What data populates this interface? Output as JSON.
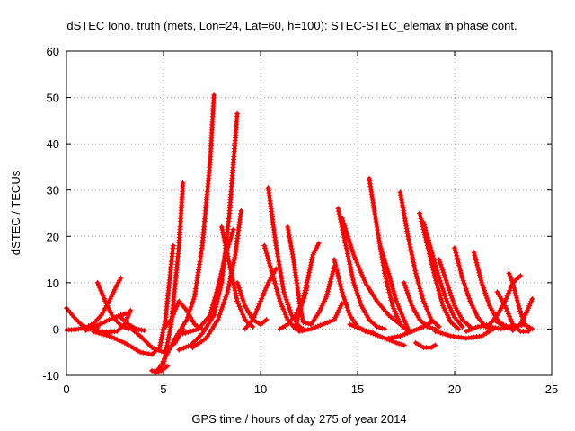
{
  "chart_data": {
    "type": "scatter",
    "title": "dSTEC Iono. truth (mets, Lon=24, Lat=60, h=100): STEC-STEC_elemax in phase cont.",
    "xlabel": "GPS time / hours of day 275 of year 2014",
    "ylabel": "dSTEC  / TECUs",
    "xlim": [
      0,
      25
    ],
    "ylim": [
      -10,
      60
    ],
    "x_ticks": [
      "0",
      "5",
      "10",
      "15",
      "20",
      "25"
    ],
    "y_ticks": [
      "-10",
      "0",
      "10",
      "20",
      "30",
      "40",
      "50",
      "60"
    ],
    "grid": true,
    "marker": "+",
    "series_color": "#ff0000",
    "arcs": [
      {
        "x": [
          0.0,
          0.4,
          0.8,
          1.2,
          1.6
        ],
        "y": [
          4.5,
          2.5,
          0.8,
          0.0,
          0.3
        ]
      },
      {
        "x": [
          0.0,
          0.5,
          1.0,
          1.4,
          1.8,
          2.2,
          2.6,
          2.8
        ],
        "y": [
          -0.2,
          -0.1,
          0.3,
          1.2,
          3.0,
          6.0,
          9.5,
          11.0
        ]
      },
      {
        "x": [
          1.0,
          1.6,
          2.2,
          2.8,
          3.2
        ],
        "y": [
          -0.3,
          0.8,
          2.0,
          3.0,
          3.5
        ]
      },
      {
        "x": [
          1.6,
          2.0,
          2.4,
          2.8,
          3.2
        ],
        "y": [
          10.0,
          6.0,
          2.5,
          0.8,
          0.0
        ]
      },
      {
        "x": [
          1.5,
          2.1,
          2.6,
          3.0,
          3.3
        ],
        "y": [
          -0.5,
          -0.7,
          -0.5,
          1.0,
          4.0
        ]
      },
      {
        "x": [
          1.4,
          2.2,
          3.0,
          3.8,
          4.4,
          4.8,
          5.1,
          5.3,
          5.5
        ],
        "y": [
          -0.6,
          -1.5,
          -3.0,
          -5.0,
          -5.5,
          -4.0,
          2.0,
          10.0,
          18.0
        ]
      },
      {
        "x": [
          4.4,
          4.6,
          4.9,
          5.2
        ],
        "y": [
          -9.0,
          -9.3,
          -9.0,
          -8.0
        ]
      },
      {
        "x": [
          4.6,
          5.0,
          5.4,
          5.8,
          6.0
        ],
        "y": [
          -9.2,
          -7.5,
          1.0,
          18.0,
          31.5
        ]
      },
      {
        "x": [
          3.2,
          3.8,
          4.4,
          5.0,
          5.6,
          6.0
        ],
        "y": [
          0.5,
          -1.5,
          -4.0,
          -5.0,
          -3.0,
          0.0
        ]
      },
      {
        "x": [
          5.0,
          5.4,
          5.8,
          6.2,
          6.6,
          7.0
        ],
        "y": [
          0.0,
          2.0,
          6.0,
          4.0,
          1.0,
          0.0
        ]
      },
      {
        "x": [
          4.8,
          5.6,
          6.2,
          6.6,
          7.0,
          7.4,
          7.6
        ],
        "y": [
          -8.5,
          -2.0,
          2.0,
          7.0,
          18.0,
          36.0,
          50.5
        ]
      },
      {
        "x": [
          5.8,
          6.4,
          7.0,
          7.6,
          8.0,
          8.4,
          8.8
        ],
        "y": [
          -4.5,
          -3.5,
          -1.0,
          3.0,
          10.0,
          25.0,
          46.5
        ]
      },
      {
        "x": [
          6.0,
          6.8,
          7.4,
          7.8,
          8.2,
          8.6
        ],
        "y": [
          -1.0,
          0.0,
          3.0,
          9.0,
          16.0,
          21.5
        ]
      },
      {
        "x": [
          6.5,
          7.2,
          7.8,
          8.3,
          8.7,
          9.0
        ],
        "y": [
          -4.0,
          -2.0,
          2.0,
          8.0,
          16.0,
          25.5
        ]
      },
      {
        "x": [
          8.0,
          8.4,
          8.8,
          9.2,
          9.6
        ],
        "y": [
          22.0,
          14.0,
          6.0,
          2.0,
          0.5
        ]
      },
      {
        "x": [
          8.8,
          9.2,
          9.6,
          10.0,
          10.3
        ],
        "y": [
          10.0,
          5.0,
          2.0,
          1.0,
          2.0
        ]
      },
      {
        "x": [
          9.2,
          9.6,
          10.0,
          10.4,
          10.8
        ],
        "y": [
          0.0,
          2.0,
          6.0,
          10.0,
          13.0
        ]
      },
      {
        "x": [
          10.4,
          10.8,
          11.2,
          11.6,
          12.0,
          12.2
        ],
        "y": [
          30.5,
          18.0,
          8.0,
          3.0,
          0.5,
          0.0
        ]
      },
      {
        "x": [
          10.2,
          10.6,
          11.0,
          11.4,
          11.8,
          12.2
        ],
        "y": [
          18.0,
          12.0,
          6.0,
          2.0,
          0.0,
          -0.2
        ]
      },
      {
        "x": [
          11.0,
          11.4,
          11.8,
          12.2,
          12.4
        ],
        "y": [
          0.0,
          1.0,
          3.0,
          6.0,
          9.0
        ]
      },
      {
        "x": [
          11.4,
          11.7,
          12.0,
          12.2
        ],
        "y": [
          22.0,
          15.0,
          6.0,
          1.5
        ]
      },
      {
        "x": [
          11.8,
          12.1,
          12.4,
          12.7,
          13.0
        ],
        "y": [
          0.5,
          5.0,
          10.0,
          16.0,
          18.5
        ]
      },
      {
        "x": [
          12.2,
          12.6,
          13.0,
          13.4,
          13.8
        ],
        "y": [
          1.5,
          1.0,
          3.5,
          7.0,
          13.5
        ]
      },
      {
        "x": [
          12.0,
          12.6,
          13.2,
          13.8,
          14.2
        ],
        "y": [
          -0.5,
          0.0,
          1.0,
          2.0,
          5.5
        ]
      },
      {
        "x": [
          14.0,
          14.4,
          14.8,
          15.2,
          15.6,
          16.0,
          16.4
        ],
        "y": [
          26.0,
          18.0,
          10.0,
          5.0,
          2.0,
          0.5,
          0.0
        ]
      },
      {
        "x": [
          13.8,
          14.2,
          14.6,
          15.0,
          15.4,
          15.8
        ],
        "y": [
          15.0,
          8.0,
          3.0,
          0.5,
          -0.5,
          -0.8
        ]
      },
      {
        "x": [
          14.2,
          14.8,
          15.4,
          16.0,
          16.6,
          17.2
        ],
        "y": [
          24.0,
          16.0,
          10.0,
          6.0,
          3.0,
          1.0
        ]
      },
      {
        "x": [
          15.6,
          16.0,
          16.4,
          16.8,
          17.2,
          17.6
        ],
        "y": [
          32.5,
          22.0,
          12.0,
          5.0,
          1.0,
          -0.5
        ]
      },
      {
        "x": [
          14.6,
          15.2,
          15.8,
          16.4,
          17.0,
          17.4
        ],
        "y": [
          1.0,
          0.0,
          -1.0,
          -2.0,
          -3.0,
          -3.5
        ]
      },
      {
        "x": [
          16.2,
          16.6,
          17.0,
          17.4,
          17.6
        ],
        "y": [
          17.5,
          12.0,
          6.0,
          2.0,
          0.0
        ]
      },
      {
        "x": [
          17.2,
          17.6,
          18.0,
          18.4,
          18.8,
          19.2
        ],
        "y": [
          29.5,
          20.0,
          12.0,
          6.0,
          2.0,
          0.5
        ]
      },
      {
        "x": [
          17.4,
          17.8,
          18.2,
          18.6,
          19.0
        ],
        "y": [
          10.0,
          5.0,
          2.0,
          0.5,
          0.0
        ]
      },
      {
        "x": [
          18.2,
          18.6,
          19.0,
          19.4,
          19.8,
          20.2
        ],
        "y": [
          25.0,
          18.0,
          11.0,
          5.0,
          1.5,
          0.0
        ]
      },
      {
        "x": [
          18.4,
          18.8,
          19.2,
          19.6,
          20.0,
          20.4
        ],
        "y": [
          23.0,
          17.0,
          11.0,
          6.0,
          2.5,
          0.5
        ]
      },
      {
        "x": [
          16.6,
          17.2,
          17.8,
          18.4,
          18.8
        ],
        "y": [
          -2.0,
          -1.5,
          -0.5,
          0.5,
          1.5
        ]
      },
      {
        "x": [
          18.0,
          18.4,
          18.8,
          19.0
        ],
        "y": [
          -3.0,
          -4.0,
          -4.0,
          -3.5
        ]
      },
      {
        "x": [
          19.2,
          19.6,
          20.0,
          20.4,
          20.8
        ],
        "y": [
          15.0,
          10.0,
          5.0,
          2.0,
          0.5
        ]
      },
      {
        "x": [
          20.0,
          20.4,
          20.8,
          21.2,
          21.6,
          22.0
        ],
        "y": [
          17.5,
          11.0,
          6.0,
          2.5,
          0.5,
          0.0
        ]
      },
      {
        "x": [
          19.0,
          19.8,
          20.6,
          21.4,
          22.0
        ],
        "y": [
          -0.5,
          -1.5,
          -2.0,
          -1.5,
          0.0
        ]
      },
      {
        "x": [
          21.0,
          21.4,
          21.8,
          22.2,
          22.6,
          23.0
        ],
        "y": [
          16.5,
          10.0,
          5.0,
          2.0,
          0.5,
          0.0
        ]
      },
      {
        "x": [
          20.6,
          21.2,
          21.8,
          22.2,
          22.6,
          23.0,
          23.4
        ],
        "y": [
          -0.5,
          0.5,
          1.0,
          3.0,
          6.0,
          10.0,
          11.5
        ]
      },
      {
        "x": [
          22.2,
          22.6,
          23.0,
          23.4,
          23.8
        ],
        "y": [
          8.0,
          5.0,
          1.0,
          -0.5,
          -0.5
        ]
      },
      {
        "x": [
          21.8,
          22.4,
          23.0,
          23.6,
          24.0
        ],
        "y": [
          0.5,
          0.0,
          0.5,
          1.0,
          0.0
        ]
      },
      {
        "x": [
          22.8,
          23.0,
          23.3,
          23.6,
          23.9
        ],
        "y": [
          12.0,
          10.0,
          5.0,
          1.0,
          0.0
        ]
      },
      {
        "x": [
          23.0,
          23.4,
          23.7,
          24.0
        ],
        "y": [
          -0.3,
          1.0,
          3.5,
          6.5
        ]
      },
      {
        "x": [
          2.8,
          3.2,
          3.6,
          4.0
        ],
        "y": [
          2.5,
          1.0,
          0.0,
          -0.3
        ]
      },
      {
        "x": [
          22.0,
          22.4,
          22.8,
          23.2
        ],
        "y": [
          2.0,
          1.0,
          0.5,
          0.2
        ]
      }
    ]
  }
}
